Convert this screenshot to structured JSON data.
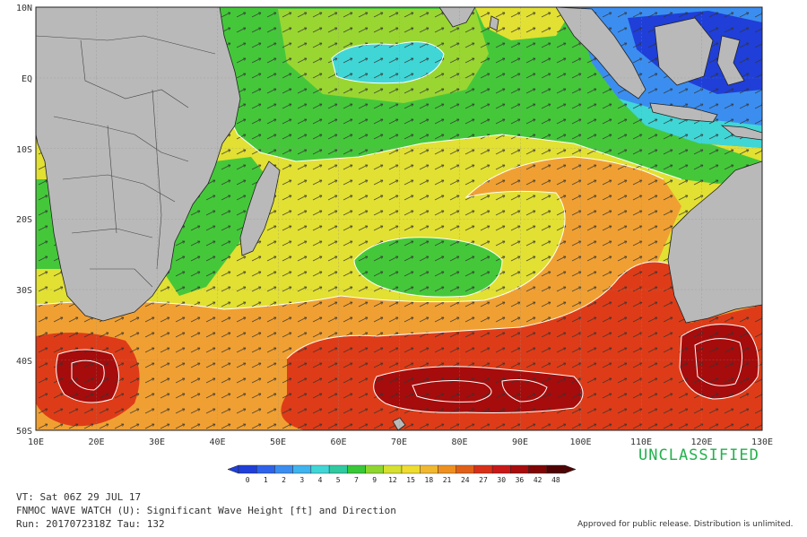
{
  "map": {
    "lon_labels": [
      "10E",
      "20E",
      "30E",
      "40E",
      "50E",
      "60E",
      "70E",
      "80E",
      "90E",
      "100E",
      "110E",
      "120E",
      "130E"
    ],
    "lat_labels": [
      "10N",
      "EQ",
      "10S",
      "20S",
      "30S",
      "40S",
      "50S"
    ]
  },
  "colorbar": {
    "values": [
      "0",
      "1",
      "2",
      "3",
      "4",
      "5",
      "7",
      "9",
      "12",
      "15",
      "18",
      "21",
      "24",
      "27",
      "30",
      "36",
      "42",
      "48"
    ],
    "colors": [
      "#1f3fd8",
      "#2e62e8",
      "#3b8ef0",
      "#3fb4ee",
      "#40d6d6",
      "#30c9a0",
      "#38c838",
      "#8fd630",
      "#d6e030",
      "#eedd30",
      "#f0b830",
      "#ee9020",
      "#e06018",
      "#d83018",
      "#c81818",
      "#a80c0c",
      "#800606",
      "#500303"
    ]
  },
  "footer": {
    "line1": "VT: Sat 06Z 29 JUL 17",
    "line2": "FNMOC WAVE WATCH (U): Significant Wave Height [ft] and Direction",
    "line3": "Run: 2017072318Z Tau: 132"
  },
  "classification": "UNCLASSIFIED",
  "approval": "Approved for public release. Distribution is unlimited.",
  "colors": {
    "land": "#b9b9b9",
    "green": "#44c83a",
    "yellow": "#e2e032",
    "orange": "#f0a032",
    "red": "#de3c18",
    "dark_red": "#a60c0c",
    "blue": "#2e62e8"
  }
}
